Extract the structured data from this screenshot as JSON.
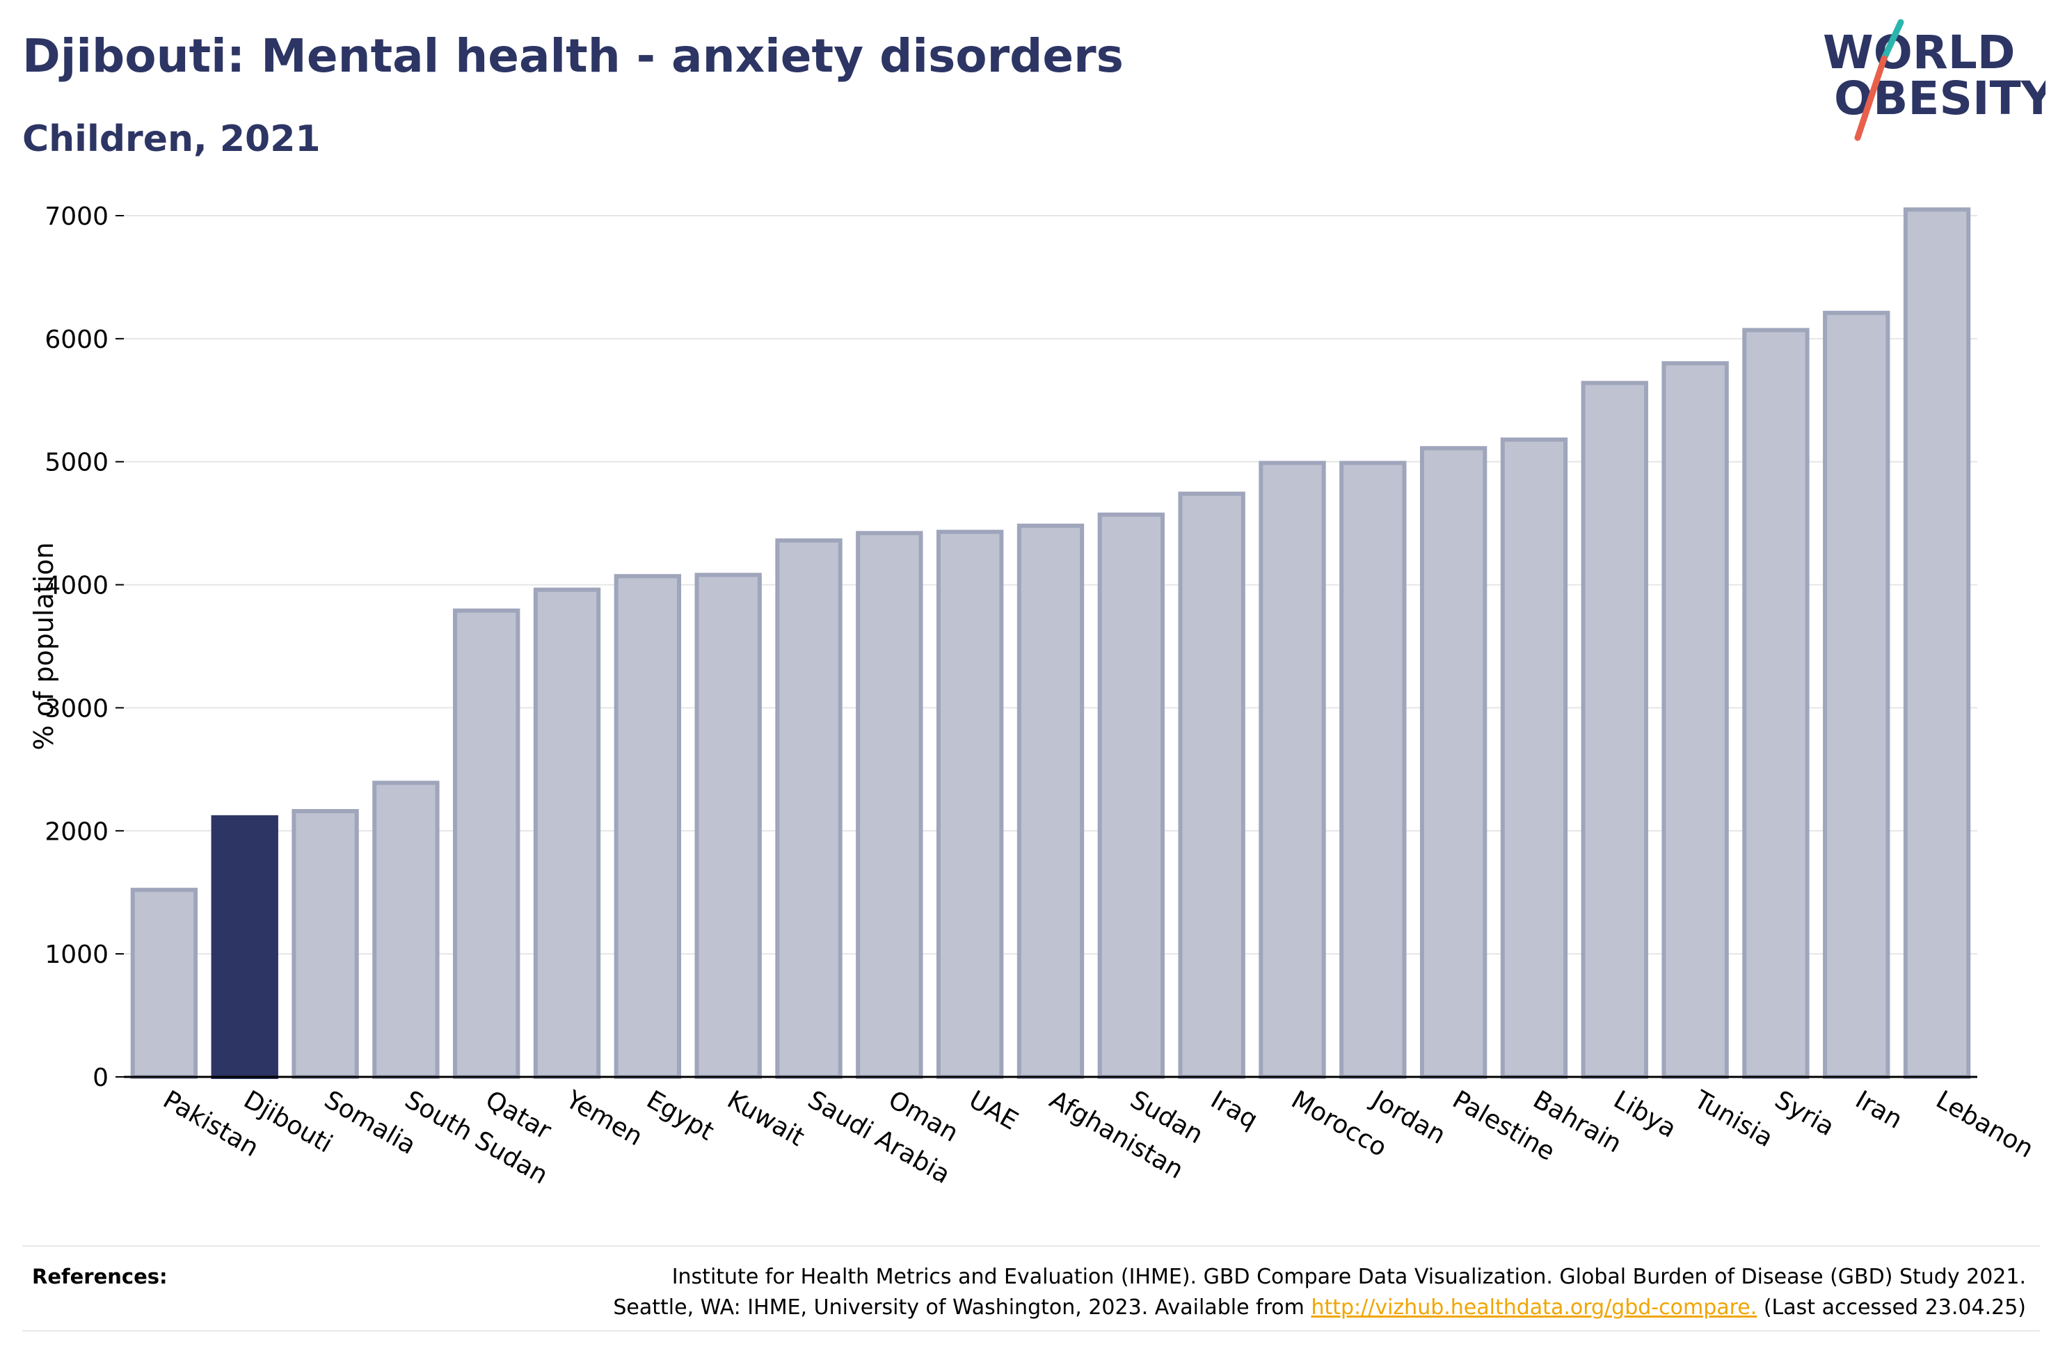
{
  "title": "Djibouti: Mental health - anxiety disorders",
  "subtitle": "Children, 2021",
  "logo": {
    "line1": "WORLD",
    "line2": "OBESITY",
    "slash_color_top": "#2bb5ad",
    "slash_color_bottom": "#e8604c"
  },
  "chart_data": {
    "type": "bar",
    "ylabel": "% of population",
    "xlabel": "",
    "ylim": [
      0,
      7000
    ],
    "yticks": [
      0,
      1000,
      2000,
      3000,
      4000,
      5000,
      6000,
      7000
    ],
    "grid": true,
    "categories": [
      "Pakistan",
      "Djibouti",
      "Somalia",
      "South Sudan",
      "Qatar",
      "Yemen",
      "Egypt",
      "Kuwait",
      "Saudi Arabia",
      "Oman",
      "UAE",
      "Afghanistan",
      "Sudan",
      "Iraq",
      "Morocco",
      "Jordan",
      "Palestine",
      "Bahrain",
      "Libya",
      "Tunisia",
      "Syria",
      "Iran",
      "Lebanon"
    ],
    "values": [
      1520,
      2110,
      2160,
      2390,
      3790,
      3960,
      4070,
      4080,
      4360,
      4420,
      4430,
      4480,
      4570,
      4740,
      4990,
      4990,
      5110,
      5180,
      5640,
      5800,
      6070,
      6210,
      7050
    ],
    "highlight": "Djibouti",
    "bar_color": "#bfc3d1",
    "bar_edge_color": "#9fa5bb",
    "highlight_color": "#2c3563"
  },
  "references": {
    "label": "References:",
    "line1": "Institute for Health Metrics and Evaluation (IHME). GBD Compare Data Visualization. Global Burden of Disease (GBD) Study 2021.",
    "line2_prefix": "Seattle, WA: IHME, University of Washington, 2023. Available from",
    "link_text": "http://vizhub.healthdata.org/gbd-compare.",
    "line2_suffix": "(Last accessed 23.04.25)"
  }
}
